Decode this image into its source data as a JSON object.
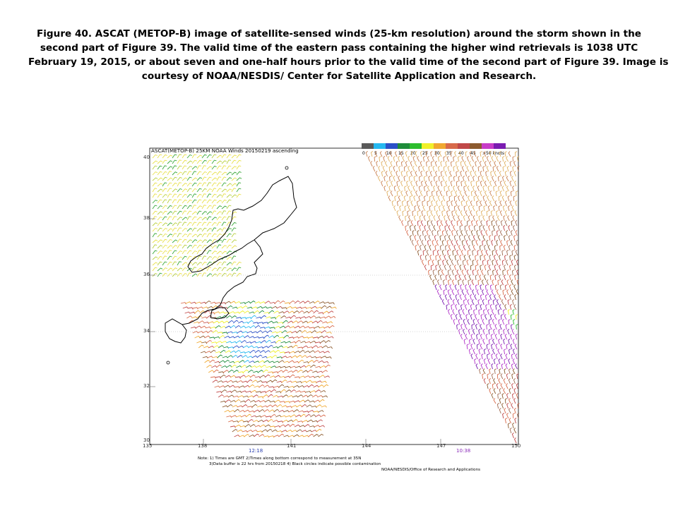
{
  "caption": {
    "lines": [
      "Figure 40.  ASCAT (METOP-B) image of satellite-sensed winds (25-km resolution) around the storm shown in the",
      "second part of Figure 39.  The valid time of the eastern pass containing the higher wind retrievals is 1038 UTC",
      "February 19, 2015, or about seven and one-half hours prior to the valid time of the second part of Figure 39.  Image is",
      "courtesy of NOAA/NESDIS/  Center for Satellite Application  and Research."
    ]
  },
  "image": {
    "title": "ASCAT(METOP-B) 25KM NOAA Winds 20150219 ascending",
    "legend": {
      "labels": [
        "0",
        "5",
        "10",
        "15",
        "20",
        "25",
        "30",
        "35",
        "40",
        "45",
        ">50 knots"
      ],
      "colors": [
        "#5a5a5a",
        "#26b8f0",
        "#2b50c8",
        "#1e8c3a",
        "#2dbd2d",
        "#f0f02a",
        "#f0a830",
        "#d86a4a",
        "#c04848",
        "#8c5a2e",
        "#c83cc8",
        "#7a1cb0"
      ]
    },
    "lat_labels": [
      "40",
      "38",
      "36",
      "34",
      "32",
      "30"
    ],
    "lon_labels": [
      "135",
      "138",
      "141",
      "144",
      "147",
      "150"
    ],
    "pass_times": [
      "12:18",
      "10:38"
    ],
    "notes": [
      "Note: 1) Times are GMT 2)Times along bottom correspond to measurement at 35N",
      "3)Data buffer is 22 hrs from 20150218 4) Black circles indicate possible contamination"
    ],
    "credit": "NOAA/NESDIS/Office of Research and Applications"
  }
}
